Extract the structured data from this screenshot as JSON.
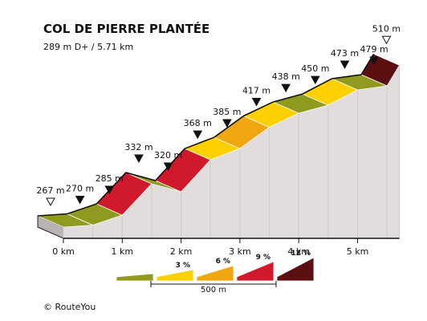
{
  "chart_data": {
    "type": "area",
    "title": "COL DE PIERRE PLANTÉE",
    "subtitle": "289 m D+ / 5.71 km",
    "x_unit": "km",
    "y_unit": "m",
    "segments": [
      {
        "start_km": 0.0,
        "end_km": 0.5,
        "start_elev": 267,
        "end_elev": 270,
        "gradient_class": 0
      },
      {
        "start_km": 0.5,
        "end_km": 1.0,
        "start_elev": 270,
        "end_elev": 285,
        "gradient_class": 0
      },
      {
        "start_km": 1.0,
        "end_km": 1.5,
        "start_elev": 285,
        "end_elev": 332,
        "gradient_class": 3
      },
      {
        "start_km": 1.5,
        "end_km": 2.0,
        "start_elev": 332,
        "end_elev": 320,
        "gradient_class": 0
      },
      {
        "start_km": 2.0,
        "end_km": 2.5,
        "start_elev": 320,
        "end_elev": 368,
        "gradient_class": 3
      },
      {
        "start_km": 2.5,
        "end_km": 3.0,
        "start_elev": 368,
        "end_elev": 385,
        "gradient_class": 1
      },
      {
        "start_km": 3.0,
        "end_km": 3.5,
        "start_elev": 385,
        "end_elev": 417,
        "gradient_class": 2
      },
      {
        "start_km": 3.5,
        "end_km": 4.0,
        "start_elev": 417,
        "end_elev": 438,
        "gradient_class": 1
      },
      {
        "start_km": 4.0,
        "end_km": 4.5,
        "start_elev": 438,
        "end_elev": 450,
        "gradient_class": 0
      },
      {
        "start_km": 4.5,
        "end_km": 5.0,
        "start_elev": 450,
        "end_elev": 473,
        "gradient_class": 1
      },
      {
        "start_km": 5.0,
        "end_km": 5.5,
        "start_elev": 473,
        "end_elev": 479,
        "gradient_class": 0
      },
      {
        "start_km": 5.5,
        "end_km": 5.71,
        "start_elev": 479,
        "end_elev": 510,
        "gradient_class": 4
      }
    ],
    "elevation_labels": [
      {
        "text": "267 m",
        "km": 0.0,
        "marker": "open"
      },
      {
        "text": "270 m",
        "km": 0.5,
        "marker": "filled"
      },
      {
        "text": "285 m",
        "km": 1.0,
        "marker": "filled"
      },
      {
        "text": "332 m",
        "km": 1.5,
        "marker": "filled"
      },
      {
        "text": "320 m",
        "km": 2.0,
        "marker": "filled"
      },
      {
        "text": "368 m",
        "km": 2.5,
        "marker": "filled"
      },
      {
        "text": "385 m",
        "km": 3.0,
        "marker": "filled"
      },
      {
        "text": "417 m",
        "km": 3.5,
        "marker": "filled"
      },
      {
        "text": "438 m",
        "km": 4.0,
        "marker": "filled"
      },
      {
        "text": "450 m",
        "km": 4.5,
        "marker": "filled"
      },
      {
        "text": "473 m",
        "km": 5.0,
        "marker": "filled"
      },
      {
        "text": "479 m",
        "km": 5.5,
        "marker": "filled"
      },
      {
        "text": "510 m",
        "km": 5.71,
        "marker": "open"
      }
    ],
    "distance_ticks": [
      {
        "km": 0,
        "label": "0 km"
      },
      {
        "km": 1,
        "label": "1 km"
      },
      {
        "km": 2,
        "label": "2 km"
      },
      {
        "km": 3,
        "label": "3 km"
      },
      {
        "km": 4,
        "label": "4 km"
      },
      {
        "km": 5,
        "label": "5 km"
      }
    ],
    "legend": [
      {
        "label": "",
        "color": "#8f9a1e"
      },
      {
        "label": "3 %",
        "color": "#ffd000"
      },
      {
        "label": "6 %",
        "color": "#f0a70f"
      },
      {
        "label": "9 %",
        "color": "#d0192b"
      },
      {
        "label": "12 %",
        "color": "#5c0f10"
      }
    ],
    "scale_label": "500 m"
  },
  "colors": {
    "side_face": "#e2dcdc",
    "side_stroke": "#cccccc",
    "top_stroke": "#111111"
  },
  "footer": {
    "copyright": "© RouteYou"
  }
}
